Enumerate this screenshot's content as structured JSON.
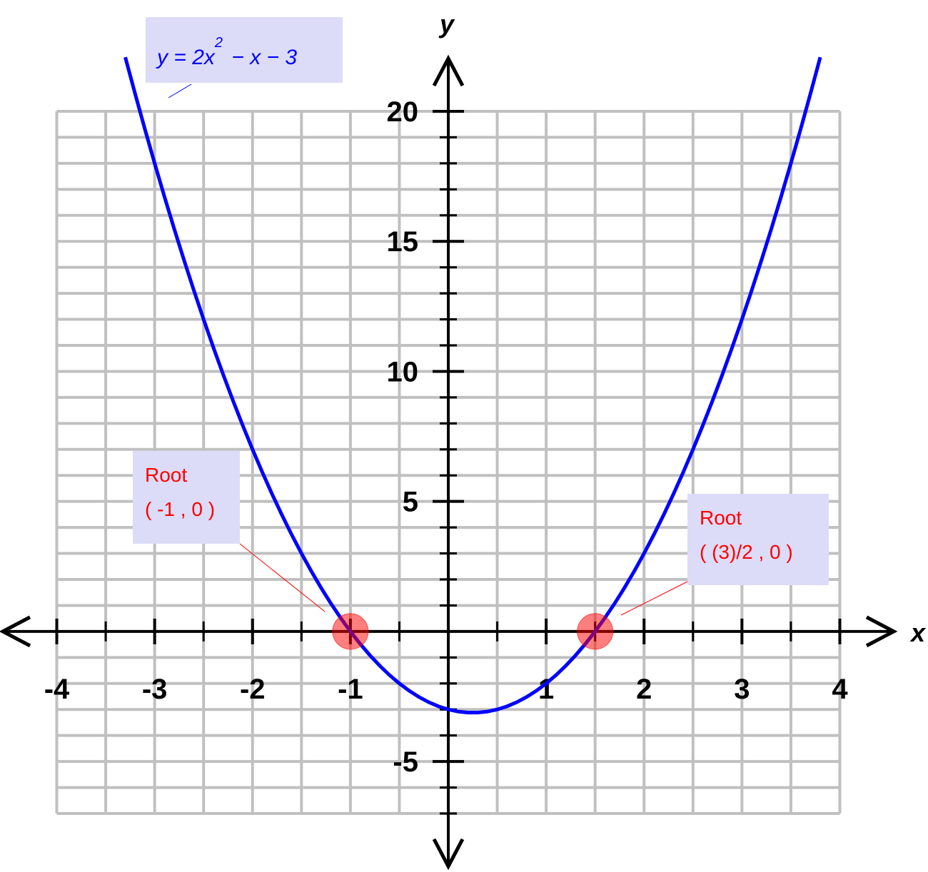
{
  "chart_data": {
    "type": "line",
    "xlabel": "x",
    "ylabel": "y",
    "xlim": [
      -4.58,
      4.58
    ],
    "ylim": [
      -9.14,
      22.14
    ],
    "xticks": [
      -4,
      -3,
      -2,
      -1,
      1,
      2,
      3,
      4
    ],
    "yticks": [
      -5,
      5,
      10,
      15,
      20
    ],
    "x_grid": [
      -4,
      -3.5,
      -3,
      -2.5,
      -2,
      -1.5,
      -1,
      -0.5,
      0,
      0.5,
      1,
      1.5,
      2,
      2.5,
      3,
      3.5,
      4
    ],
    "y_grid": [
      -7,
      -6,
      -5,
      -4,
      -3,
      -2,
      -1,
      0,
      1,
      2,
      3,
      4,
      5,
      6,
      7,
      8,
      9,
      10,
      11,
      12,
      13,
      14,
      15,
      16,
      17,
      18,
      19,
      20
    ],
    "grid": true,
    "equation": {
      "base": "y = 2x",
      "exponent": "2",
      "rest": " − x − 3"
    },
    "x": [
      -3.3,
      -3.2,
      -3.1,
      -3.0,
      -2.9,
      -2.8,
      -2.7,
      -2.6,
      -2.5,
      -2.4,
      -2.3,
      -2.2,
      -2.1,
      -2.0,
      -1.9,
      -1.8,
      -1.7,
      -1.6,
      -1.5,
      -1.4,
      -1.3,
      -1.2,
      -1.1,
      -1.0,
      -0.9,
      -0.8,
      -0.7,
      -0.6,
      -0.5,
      -0.4,
      -0.3,
      -0.2,
      -0.1,
      0,
      0.1,
      0.2,
      0.3,
      0.4,
      0.5,
      0.6,
      0.7,
      0.8,
      0.9,
      1.0,
      1.1,
      1.2,
      1.3,
      1.4,
      1.5,
      1.6,
      1.7,
      1.8,
      1.9,
      2.0,
      2.1,
      2.2,
      2.3,
      2.4,
      2.5,
      2.6,
      2.7,
      2.8,
      2.9,
      3.0,
      3.1,
      3.2,
      3.3,
      3.4,
      3.5,
      3.6,
      3.7,
      3.8
    ],
    "series": [
      {
        "color": "#0000ff",
        "values": [
          22.08,
          20.68,
          19.32,
          18,
          16.72,
          15.48,
          14.28,
          13.12,
          12,
          10.92,
          9.88,
          8.88,
          7.92,
          7,
          6.12,
          5.28,
          4.48,
          3.72,
          3,
          2.32,
          1.68,
          1.08,
          0.52,
          0,
          -0.48,
          -0.92,
          -1.32,
          -1.68,
          -2,
          -2.28,
          -2.52,
          -2.72,
          -2.88,
          -3,
          -3.08,
          -3.12,
          -3.12,
          -3.08,
          -3,
          -2.88,
          -2.72,
          -2.52,
          -2.28,
          -2,
          -1.68,
          -1.32,
          -0.92,
          -0.48,
          0,
          0.52,
          1.08,
          1.68,
          2.32,
          3,
          3.72,
          4.48,
          5.28,
          6.12,
          7,
          7.92,
          8.88,
          9.88,
          10.92,
          12,
          13.12,
          14.28,
          15.48,
          16.72,
          18,
          19.32,
          20.68,
          22.08
        ]
      }
    ],
    "roots": {
      "x": [
        -1,
        1.5
      ],
      "values": [
        0,
        0
      ],
      "color": "#ff0000"
    },
    "annotations": [
      {
        "title": "Root",
        "text": "( -1 , 0 )"
      },
      {
        "title": "Root",
        "text": "( (3)/2 , 0 )"
      }
    ]
  }
}
